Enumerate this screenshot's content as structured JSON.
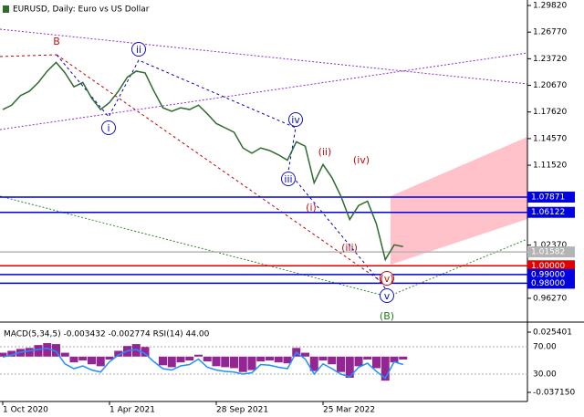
{
  "chart_data": [
    {
      "type": "line",
      "title": "EURUSD, Daily:  Euro vs US Dollar",
      "categories": [
        "1 Oct 2020",
        null,
        null,
        null,
        null,
        null,
        null,
        null,
        null,
        null,
        null,
        null,
        "1 Apr 2021",
        null,
        null,
        null,
        null,
        null,
        null,
        null,
        null,
        null,
        null,
        null,
        "28 Sep 2021",
        null,
        null,
        null,
        null,
        null,
        null,
        null,
        null,
        null,
        null,
        null,
        "25 Mar 2022",
        null,
        null,
        null,
        null,
        null,
        null,
        null,
        null,
        null
      ],
      "series": [
        {
          "name": "EURUSD",
          "color": "#2e6b2e",
          "values": [
            1.179,
            1.184,
            1.195,
            1.2,
            1.21,
            1.223,
            1.233,
            1.221,
            1.205,
            1.21,
            1.192,
            1.179,
            1.187,
            1.2,
            1.216,
            1.223,
            1.221,
            1.2,
            1.181,
            1.177,
            1.181,
            1.179,
            1.184,
            1.174,
            1.163,
            1.158,
            1.153,
            1.135,
            1.129,
            1.135,
            1.132,
            1.127,
            1.121,
            1.142,
            1.137,
            1.095,
            1.116,
            1.101,
            1.08,
            1.053,
            1.069,
            1.074,
            1.048,
            1.007,
            1.024,
            1.022
          ]
        }
      ],
      "ylim": [
        0.9365,
        1.3045
      ],
      "yticks": [
        {
          "value": 1.2982,
          "label": "1.29820"
        },
        {
          "value": 1.2677,
          "label": "1.26770"
        },
        {
          "value": 1.2372,
          "label": "1.23720"
        },
        {
          "value": 1.2067,
          "label": "1.20670"
        },
        {
          "value": 1.1762,
          "label": "1.17620"
        },
        {
          "value": 1.1457,
          "label": "1.14570"
        },
        {
          "value": 1.1152,
          "label": "1.11520"
        },
        {
          "value": 1.0237,
          "label": "1.02370"
        },
        {
          "value": 0.9627,
          "label": "0.96270"
        }
      ],
      "levels": [
        {
          "value": 1.07871,
          "color": "#0000e0"
        },
        {
          "value": 1.06122,
          "color": "#0000e0"
        },
        {
          "value": 1.01582,
          "color": "#b4b4b4"
        },
        {
          "value": 1,
          "label": "1.00000",
          "color": "#e00000"
        },
        {
          "value": 0.99,
          "label": "0.99000",
          "color": "#0000e0"
        },
        {
          "value": 0.98,
          "label": "0.98000",
          "color": "#0000e0"
        }
      ],
      "wave_labels": [
        "B",
        "ii",
        "i",
        "iv",
        "iii",
        "(ii)",
        "(i)",
        "(iv)",
        "(iii)",
        "(v)",
        "v",
        "(B)"
      ],
      "grid": false
    },
    {
      "type": "macd",
      "title": "MACD(5,34,5) -0.003432 -0.002774 RSI(14) 44.00",
      "series": [
        {
          "name": "MACD",
          "color": "#800080",
          "values": [
            0.004,
            0.006,
            0.008,
            0.009,
            0.012,
            0.014,
            0.013,
            0.004,
            -0.006,
            -0.004,
            -0.008,
            -0.01,
            -0.003,
            0.006,
            0.011,
            0.013,
            0.01,
            0.0,
            -0.009,
            -0.011,
            -0.006,
            -0.004,
            0.002,
            -0.005,
            -0.01,
            -0.011,
            -0.012,
            -0.016,
            -0.014,
            -0.005,
            -0.004,
            -0.006,
            -0.007,
            0.009,
            0.004,
            -0.015,
            -0.004,
            -0.008,
            -0.016,
            -0.022,
            -0.01,
            -0.003,
            -0.012,
            -0.025,
            -0.006,
            -0.003
          ]
        },
        {
          "name": "RSI(14)",
          "color": "#1e90ff",
          "axis": "y2",
          "values": [
            55,
            58,
            62,
            64,
            66,
            68,
            63,
            45,
            38,
            42,
            36,
            33,
            48,
            58,
            64,
            66,
            60,
            48,
            38,
            36,
            42,
            44,
            52,
            40,
            36,
            34,
            33,
            30,
            32,
            44,
            43,
            40,
            38,
            62,
            52,
            30,
            45,
            38,
            30,
            26,
            40,
            46,
            34,
            24,
            48,
            44
          ]
        }
      ],
      "ylim": [
        -0.046627,
        0.032035
      ],
      "yticks": [
        0.025401,
        {
          "value": -0.03715,
          "label": "-0.037150"
        }
      ],
      "y2lim": [
        -10,
        100.7
      ],
      "y2ticks": [
        {
          "value": 70,
          "label": "70.00"
        },
        {
          "value": 30,
          "label": "30.00"
        }
      ]
    }
  ]
}
